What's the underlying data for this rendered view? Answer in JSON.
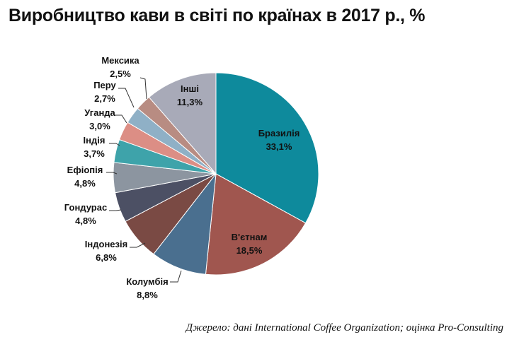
{
  "title": "Виробництво кави в світі по країнах в 2017 р., %",
  "source": "Джерело: дані International Coffee Organization; оцінка Pro-Consulting",
  "chart_data": {
    "type": "pie",
    "title": "Виробництво кави в світі по країнах в 2017 р., %",
    "slices": [
      {
        "label": "Бразилія",
        "value": 33.1,
        "value_label": "33,1%",
        "color": "#0e8a9c"
      },
      {
        "label": "В'єтнам",
        "value": 18.5,
        "value_label": "18,5%",
        "color": "#a0564f"
      },
      {
        "label": "Колумбія",
        "value": 8.8,
        "value_label": "8,8%",
        "color": "#4a6f8f"
      },
      {
        "label": "Індонезія",
        "value": 6.8,
        "value_label": "6,8%",
        "color": "#7a4a44"
      },
      {
        "label": "Гондурас",
        "value": 4.8,
        "value_label": "4,8%",
        "color": "#4c5064"
      },
      {
        "label": "Ефіопія",
        "value": 4.8,
        "value_label": "4,8%",
        "color": "#8c95a0"
      },
      {
        "label": "Індія",
        "value": 3.7,
        "value_label": "3,7%",
        "color": "#3ea3aa"
      },
      {
        "label": "Уганда",
        "value": 3.0,
        "value_label": "3,0%",
        "color": "#dc8e85"
      },
      {
        "label": "Перу",
        "value": 2.7,
        "value_label": "2,7%",
        "color": "#8fb0c6"
      },
      {
        "label": "Мексика",
        "value": 2.5,
        "value_label": "2,5%",
        "color": "#b88c82"
      },
      {
        "label": "Інші",
        "value": 11.3,
        "value_label": "11,3%",
        "color": "#a8aab8"
      }
    ]
  }
}
